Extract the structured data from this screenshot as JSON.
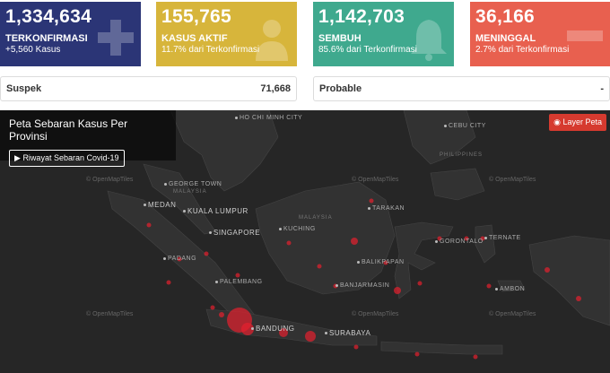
{
  "stats": {
    "confirmed": {
      "number": "1,334,634",
      "label": "TERKONFIRMASI",
      "sub": "+5,560 Kasus",
      "color": "#2b3576",
      "icon": "plus-icon"
    },
    "active": {
      "number": "155,765",
      "label": "KASUS AKTIF",
      "sub": "11.7% dari Terkonfirmasi",
      "color": "#d7b53b",
      "icon": "patient-icon"
    },
    "recovered": {
      "number": "1,142,703",
      "label": "SEMBUH",
      "sub": "85.6% dari Terkonfirmasi",
      "color": "#3fa98e",
      "icon": "bell-icon"
    },
    "deaths": {
      "number": "36,166",
      "label": "MENINGGAL",
      "sub": "2.7% dari Terkonfirmasi",
      "color": "#e8604f",
      "icon": "minus-icon"
    }
  },
  "suspek": {
    "label": "Suspek",
    "value": "71,668"
  },
  "probable": {
    "label": "Probable",
    "value": "-"
  },
  "map": {
    "title": "Peta Sebaran Kasus Per Provinsi",
    "history_button": "Riwayat Sebaran Covid-19",
    "layer_button": "Layer Peta",
    "attribution": "© OpenMapTiles",
    "cities": {
      "hochiminh": "HO CHI MINH CITY",
      "medan": "MEDAN",
      "kualalumpur": "KUALA LUMPUR",
      "singapore": "SINGAPORE",
      "padang": "PADANG",
      "palembang": "PALEMBANG",
      "bandung": "BANDUNG",
      "surabaya": "SURABAYA",
      "kuching": "KUCHING",
      "tarakan": "TARAKAN",
      "balikpapan": "BALIKPAPAN",
      "banjarmasin": "BANJARMASIN",
      "gorontalo": "GORONTALO",
      "ternate": "TERNATE",
      "ambon": "AMBON",
      "cebu": "CEBU CITY",
      "georgetown": "GEORGE TOWN"
    },
    "countries": {
      "malaysia1": "MALAYSIA",
      "malaysia2": "MALAYSIA",
      "philippines": "PHILIPPINES"
    }
  }
}
